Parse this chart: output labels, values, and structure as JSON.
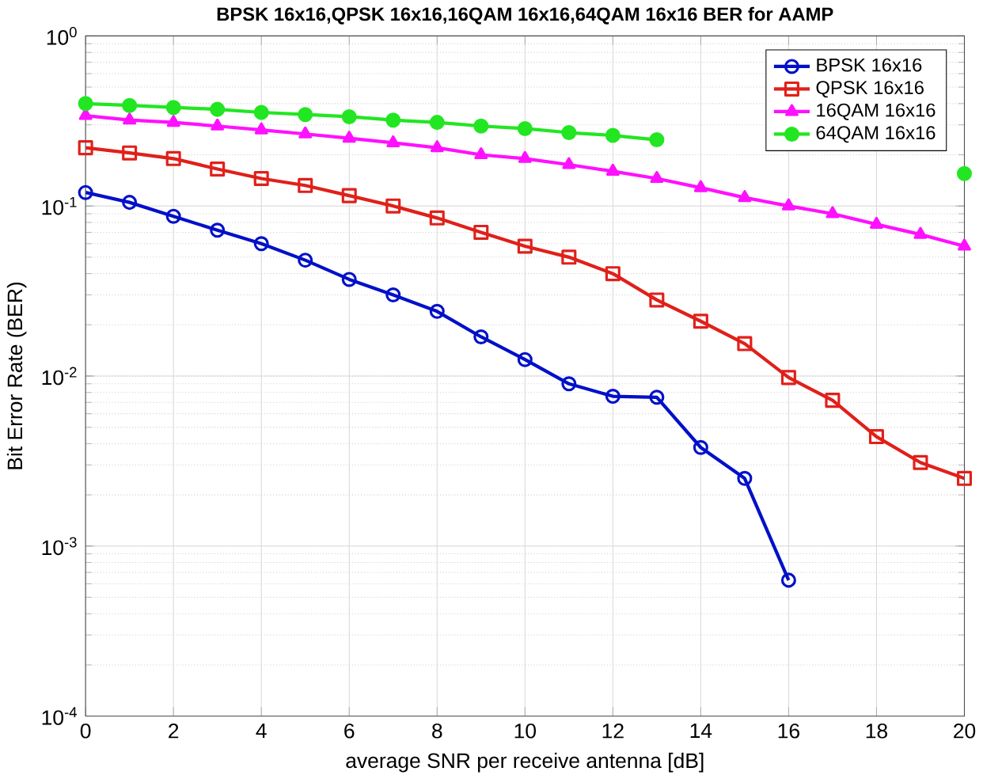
{
  "chart_data": {
    "type": "line",
    "title": "BPSK 16x16,QPSK 16x16,16QAM 16x16,64QAM 16x16 BER for AAMP",
    "xlabel": "average SNR per receive antenna [dB]",
    "ylabel": "Bit Error Rate (BER)",
    "x": [
      0,
      1,
      2,
      3,
      4,
      5,
      6,
      7,
      8,
      9,
      10,
      11,
      12,
      13,
      14,
      15,
      16,
      17,
      18,
      19,
      20
    ],
    "series": [
      {
        "name": "BPSK 16x16",
        "color": "#0010c8",
        "marker": "circle",
        "values": [
          0.12,
          0.105,
          0.087,
          0.072,
          0.06,
          0.048,
          0.037,
          0.03,
          0.024,
          0.017,
          0.0125,
          0.009,
          0.0076,
          0.0075,
          0.0038,
          0.0025,
          0.00063,
          null,
          null,
          null,
          null
        ]
      },
      {
        "name": "QPSK 16x16",
        "color": "#e0201a",
        "marker": "square",
        "values": [
          0.22,
          0.205,
          0.19,
          0.165,
          0.145,
          0.132,
          0.115,
          0.1,
          0.085,
          0.07,
          0.058,
          0.05,
          0.04,
          0.028,
          0.021,
          0.0155,
          0.0098,
          0.0072,
          0.0044,
          0.0031,
          0.0025
        ]
      },
      {
        "name": "16QAM 16x16",
        "color": "#ff10ff",
        "marker": "triangle",
        "values": [
          0.34,
          0.32,
          0.31,
          0.295,
          0.28,
          0.265,
          0.25,
          0.235,
          0.22,
          0.2,
          0.19,
          0.175,
          0.16,
          0.145,
          0.128,
          0.112,
          0.1,
          0.09,
          0.078,
          0.068,
          0.058
        ]
      },
      {
        "name": "64QAM 16x16",
        "color": "#22e622",
        "marker": "circle",
        "values": [
          0.4,
          0.39,
          0.38,
          0.37,
          0.355,
          0.345,
          0.335,
          0.32,
          0.31,
          0.295,
          0.285,
          0.27,
          0.26,
          0.245,
          null,
          null,
          null,
          null,
          null,
          null,
          0.155
        ]
      }
    ],
    "log": "y",
    "grid": true,
    "legend": "top right",
    "line_style": "solid",
    "xlim": [
      0,
      20
    ],
    "xticks": [
      0,
      2,
      4,
      6,
      8,
      10,
      12,
      14,
      16,
      18,
      20
    ],
    "ylim": [
      0.0001,
      1
    ],
    "yticks": [
      {
        "value": 0.0001,
        "label": "10$^{-4}$"
      },
      {
        "value": 0.001,
        "label": "10$^{-3}$"
      },
      {
        "value": 0.01,
        "label": "10$^{-2}$"
      },
      {
        "value": 0.1,
        "label": "10$^{-1}$"
      },
      {
        "value": 1,
        "label": "10$^{0}$"
      }
    ]
  }
}
